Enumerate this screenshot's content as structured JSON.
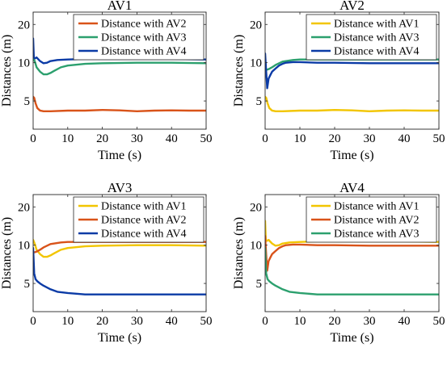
{
  "chart_data": [
    {
      "type": "line",
      "title": "AV1",
      "xlabel": "Time (s)",
      "ylabel": "Distances (m)",
      "xlim": [
        0,
        50
      ],
      "ylim": [
        3,
        25
      ],
      "yscale": "log",
      "xticks": [
        "0",
        "10",
        "20",
        "30",
        "40",
        "50"
      ],
      "yticks": [
        {
          "v": 5,
          "label": "5"
        },
        {
          "v": 10,
          "label": "10"
        },
        {
          "v": 20,
          "label": "20"
        }
      ],
      "legend": "top-right",
      "series": [
        {
          "name": "Distance with AV2",
          "color": "#D95319",
          "x": [
            0,
            0.3,
            0.7,
            1.2,
            2,
            3,
            5,
            10,
            15,
            20,
            25,
            30,
            35,
            40,
            45,
            50
          ],
          "y": [
            5.4,
            5.3,
            4.8,
            4.4,
            4.2,
            4.15,
            4.15,
            4.2,
            4.2,
            4.25,
            4.22,
            4.15,
            4.2,
            4.22,
            4.2,
            4.2
          ]
        },
        {
          "name": "Distance with AV3",
          "color": "#2CA06E",
          "x": [
            0,
            0.5,
            1,
            2,
            3,
            4,
            5,
            6,
            8,
            10,
            15,
            20,
            30,
            40,
            50
          ],
          "y": [
            11.0,
            10.2,
            9.2,
            8.5,
            8.1,
            8.1,
            8.3,
            8.6,
            9.2,
            9.5,
            9.8,
            9.9,
            10.0,
            10.0,
            9.9
          ]
        },
        {
          "name": "Distance with AV4",
          "color": "#0B3BA6",
          "x": [
            0,
            0.2,
            0.5,
            1,
            2,
            3,
            4,
            5,
            7,
            10,
            15,
            20,
            30,
            40,
            50
          ],
          "y": [
            15.5,
            11.0,
            10.8,
            11.0,
            10.3,
            9.9,
            10.0,
            10.3,
            10.5,
            10.6,
            10.7,
            10.7,
            10.7,
            10.7,
            10.6
          ]
        }
      ]
    },
    {
      "type": "line",
      "title": "AV2",
      "xlabel": "Time (s)",
      "ylabel": "Distances (m)",
      "xlim": [
        0,
        50
      ],
      "ylim": [
        3,
        25
      ],
      "yscale": "log",
      "xticks": [
        "0",
        "10",
        "20",
        "30",
        "40",
        "50"
      ],
      "yticks": [
        {
          "v": 5,
          "label": "5"
        },
        {
          "v": 10,
          "label": "10"
        },
        {
          "v": 20,
          "label": "20"
        }
      ],
      "legend": "top-right",
      "series": [
        {
          "name": "Distance with AV1",
          "color": "#F2C500",
          "x": [
            0,
            0.3,
            0.7,
            1.2,
            2,
            3,
            5,
            10,
            15,
            20,
            25,
            30,
            35,
            40,
            45,
            50
          ],
          "y": [
            5.4,
            5.3,
            4.8,
            4.4,
            4.2,
            4.15,
            4.15,
            4.2,
            4.2,
            4.25,
            4.22,
            4.15,
            4.2,
            4.22,
            4.2,
            4.2
          ]
        },
        {
          "name": "Distance with AV3",
          "color": "#2CA06E",
          "x": [
            0,
            0.5,
            1,
            2,
            3,
            5,
            8,
            10,
            15,
            20,
            30,
            40,
            50
          ],
          "y": [
            8.8,
            8.8,
            8.9,
            9.2,
            9.6,
            10.2,
            10.5,
            10.6,
            10.6,
            10.6,
            10.6,
            10.6,
            10.6
          ]
        },
        {
          "name": "Distance with AV4",
          "color": "#0B3BA6",
          "x": [
            0,
            0.3,
            0.6,
            1,
            1.5,
            2,
            3,
            4,
            5,
            6,
            8,
            10,
            15,
            20,
            30,
            40,
            50
          ],
          "y": [
            11.8,
            8.5,
            6.3,
            7.5,
            8.0,
            8.5,
            9.0,
            9.5,
            9.8,
            10.0,
            10.1,
            10.1,
            10.0,
            10.0,
            9.9,
            9.9,
            9.9
          ]
        }
      ]
    },
    {
      "type": "line",
      "title": "AV3",
      "xlabel": "Time (s)",
      "ylabel": "Distances (m)",
      "xlim": [
        0,
        50
      ],
      "ylim": [
        3,
        25
      ],
      "yscale": "log",
      "xticks": [
        "0",
        "10",
        "20",
        "30",
        "40",
        "50"
      ],
      "yticks": [
        {
          "v": 5,
          "label": "5"
        },
        {
          "v": 10,
          "label": "10"
        },
        {
          "v": 20,
          "label": "20"
        }
      ],
      "legend": "top-right",
      "series": [
        {
          "name": "Distance with AV1",
          "color": "#F2C500",
          "x": [
            0,
            0.5,
            1,
            2,
            3,
            4,
            5,
            6,
            8,
            10,
            15,
            20,
            30,
            40,
            50
          ],
          "y": [
            11.0,
            10.2,
            9.2,
            8.5,
            8.1,
            8.1,
            8.3,
            8.6,
            9.2,
            9.5,
            9.8,
            9.9,
            10.0,
            10.0,
            9.9
          ]
        },
        {
          "name": "Distance with AV2",
          "color": "#D95319",
          "x": [
            0,
            0.5,
            1,
            2,
            3,
            5,
            8,
            10,
            15,
            20,
            30,
            40,
            50
          ],
          "y": [
            8.8,
            8.8,
            8.9,
            9.2,
            9.6,
            10.2,
            10.5,
            10.6,
            10.6,
            10.6,
            10.6,
            10.6,
            10.6
          ]
        },
        {
          "name": "Distance with AV4",
          "color": "#0B3BA6",
          "x": [
            0,
            0.3,
            0.7,
            1.2,
            2,
            3,
            5,
            7,
            10,
            15,
            20,
            30,
            40,
            50
          ],
          "y": [
            9.5,
            6.0,
            5.4,
            5.2,
            5.0,
            4.8,
            4.5,
            4.3,
            4.2,
            4.1,
            4.1,
            4.1,
            4.1,
            4.1
          ]
        }
      ]
    },
    {
      "type": "line",
      "title": "AV4",
      "xlabel": "Time (s)",
      "ylabel": "Distances (m)",
      "xlim": [
        0,
        50
      ],
      "ylim": [
        3,
        25
      ],
      "yscale": "log",
      "xticks": [
        "0",
        "10",
        "20",
        "30",
        "40",
        "50"
      ],
      "yticks": [
        {
          "v": 5,
          "label": "5"
        },
        {
          "v": 10,
          "label": "10"
        },
        {
          "v": 20,
          "label": "20"
        }
      ],
      "legend": "top-right",
      "series": [
        {
          "name": "Distance with AV1",
          "color": "#F2C500",
          "x": [
            0,
            0.2,
            0.5,
            1,
            2,
            3,
            4,
            5,
            7,
            10,
            15,
            20,
            30,
            40,
            50
          ],
          "y": [
            15.5,
            11.0,
            10.8,
            11.0,
            10.3,
            9.9,
            10.0,
            10.3,
            10.5,
            10.6,
            10.7,
            10.7,
            10.7,
            10.7,
            10.6
          ]
        },
        {
          "name": "Distance with AV2",
          "color": "#D95319",
          "x": [
            0,
            0.3,
            0.6,
            1,
            1.5,
            2,
            3,
            4,
            5,
            6,
            8,
            10,
            15,
            20,
            30,
            40,
            50
          ],
          "y": [
            11.8,
            8.5,
            6.3,
            7.5,
            8.0,
            8.5,
            9.0,
            9.5,
            9.8,
            10.0,
            10.1,
            10.1,
            10.0,
            10.0,
            9.9,
            9.9,
            9.9
          ]
        },
        {
          "name": "Distance with AV3",
          "color": "#2CA06E",
          "x": [
            0,
            0.3,
            0.7,
            1.2,
            2,
            3,
            5,
            7,
            10,
            15,
            20,
            30,
            40,
            50
          ],
          "y": [
            9.5,
            6.0,
            5.4,
            5.2,
            5.0,
            4.8,
            4.5,
            4.3,
            4.2,
            4.1,
            4.1,
            4.1,
            4.1,
            4.1
          ]
        }
      ]
    }
  ]
}
